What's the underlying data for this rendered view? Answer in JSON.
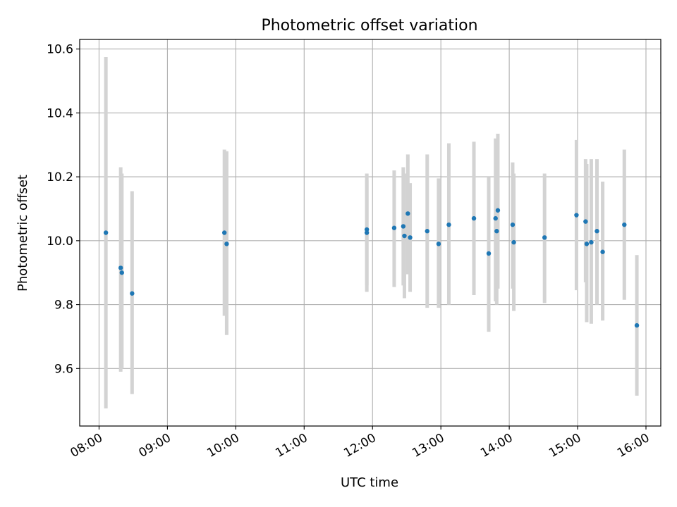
{
  "chart_data": {
    "type": "scatter",
    "title": "Photometric offset variation",
    "xlabel": "UTC time",
    "ylabel": "Photometric offset",
    "x_ticks": [
      "08:00",
      "09:00",
      "10:00",
      "11:00",
      "12:00",
      "13:00",
      "14:00",
      "15:00",
      "16:00"
    ],
    "y_ticks": [
      "9.6",
      "9.8",
      "10.0",
      "10.2",
      "10.4",
      "10.6"
    ],
    "xlim": [
      "07:43",
      "16:13"
    ],
    "ylim": [
      9.42,
      10.63
    ],
    "grid": true,
    "colors": {
      "points": "#1f77b4",
      "error_bars": "#d3d3d3",
      "grid": "#b0b0b0",
      "axes": "#000000"
    },
    "points": [
      {
        "x": "08:06",
        "y": 10.025,
        "ylow": 9.475,
        "yhigh": 10.575
      },
      {
        "x": "08:19",
        "y": 9.915,
        "ylow": 9.59,
        "yhigh": 10.23
      },
      {
        "x": "08:20",
        "y": 9.9,
        "ylow": 9.6,
        "yhigh": 10.21
      },
      {
        "x": "08:29",
        "y": 9.835,
        "ylow": 9.52,
        "yhigh": 10.155
      },
      {
        "x": "09:50",
        "y": 10.025,
        "ylow": 9.765,
        "yhigh": 10.285
      },
      {
        "x": "09:52",
        "y": 9.99,
        "ylow": 9.705,
        "yhigh": 10.28
      },
      {
        "x": "11:55",
        "y": 10.035,
        "ylow": 9.84,
        "yhigh": 10.21
      },
      {
        "x": "11:55",
        "y": 10.025,
        "ylow": 9.86,
        "yhigh": 10.19
      },
      {
        "x": "12:19",
        "y": 10.04,
        "ylow": 9.855,
        "yhigh": 10.22
      },
      {
        "x": "12:27",
        "y": 10.045,
        "ylow": 9.86,
        "yhigh": 10.23
      },
      {
        "x": "12:28",
        "y": 10.015,
        "ylow": 9.82,
        "yhigh": 10.21
      },
      {
        "x": "12:31",
        "y": 10.085,
        "ylow": 9.895,
        "yhigh": 10.27
      },
      {
        "x": "12:33",
        "y": 10.01,
        "ylow": 9.84,
        "yhigh": 10.18
      },
      {
        "x": "12:48",
        "y": 10.03,
        "ylow": 9.79,
        "yhigh": 10.27
      },
      {
        "x": "12:58",
        "y": 9.99,
        "ylow": 9.79,
        "yhigh": 10.195
      },
      {
        "x": "13:07",
        "y": 10.05,
        "ylow": 9.8,
        "yhigh": 10.305
      },
      {
        "x": "13:29",
        "y": 10.07,
        "ylow": 9.83,
        "yhigh": 10.31
      },
      {
        "x": "13:42",
        "y": 9.96,
        "ylow": 9.715,
        "yhigh": 10.2
      },
      {
        "x": "13:48",
        "y": 10.07,
        "ylow": 9.81,
        "yhigh": 10.32
      },
      {
        "x": "13:49",
        "y": 10.03,
        "ylow": 9.8,
        "yhigh": 10.26
      },
      {
        "x": "13:50",
        "y": 10.095,
        "ylow": 9.85,
        "yhigh": 10.335
      },
      {
        "x": "14:03",
        "y": 10.05,
        "ylow": 9.85,
        "yhigh": 10.245
      },
      {
        "x": "14:04",
        "y": 9.995,
        "ylow": 9.78,
        "yhigh": 10.21
      },
      {
        "x": "14:31",
        "y": 10.01,
        "ylow": 9.805,
        "yhigh": 10.21
      },
      {
        "x": "14:59",
        "y": 10.08,
        "ylow": 9.845,
        "yhigh": 10.315
      },
      {
        "x": "15:07",
        "y": 10.06,
        "ylow": 9.87,
        "yhigh": 10.255
      },
      {
        "x": "15:08",
        "y": 9.99,
        "ylow": 9.745,
        "yhigh": 10.24
      },
      {
        "x": "15:12",
        "y": 9.995,
        "ylow": 9.74,
        "yhigh": 10.255
      },
      {
        "x": "15:17",
        "y": 10.03,
        "ylow": 9.8,
        "yhigh": 10.255
      },
      {
        "x": "15:22",
        "y": 9.965,
        "ylow": 9.75,
        "yhigh": 10.185
      },
      {
        "x": "15:41",
        "y": 10.05,
        "ylow": 9.815,
        "yhigh": 10.285
      },
      {
        "x": "15:52",
        "y": 9.735,
        "ylow": 9.515,
        "yhigh": 9.955
      }
    ]
  }
}
